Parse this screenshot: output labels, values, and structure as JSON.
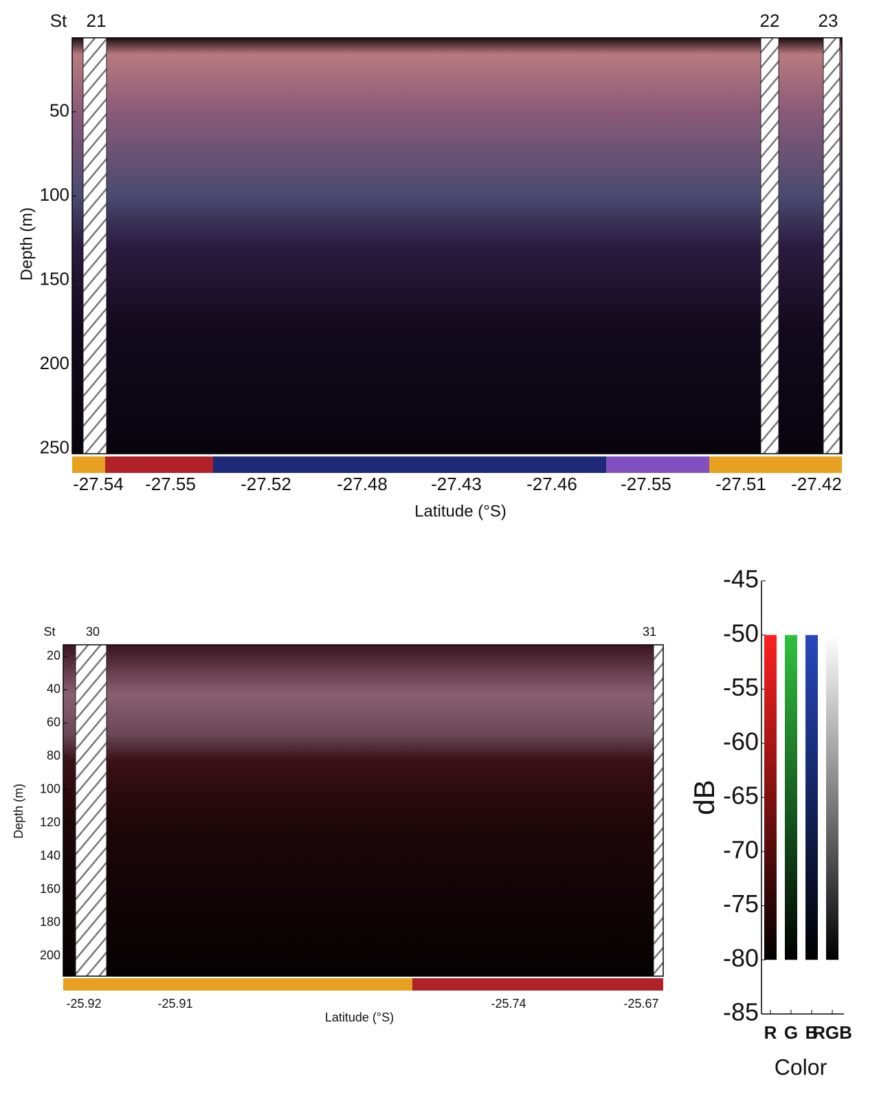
{
  "chart_data": [
    {
      "type": "echogram",
      "stations_label": "St",
      "stations": [
        21,
        22,
        23
      ],
      "categories": [
        "-27.54",
        "-27.55",
        "-27.52",
        "-27.48",
        "-27.43",
        "-27.46",
        "-27.55",
        "-27.51",
        "-27.42"
      ],
      "xlabel": "Latitude (°S)",
      "ylabel": "Depth (m)",
      "ylim": [
        6,
        253
      ],
      "yticks": [
        50,
        100,
        150,
        200,
        250
      ],
      "strip_colors": [
        "#e8a020",
        "#b02228",
        "#1e2a78",
        "#8050c0",
        "#e8a020"
      ]
    },
    {
      "type": "echogram",
      "stations_label": "St",
      "stations": [
        30,
        31
      ],
      "categories": [
        "-25.92",
        "-25.91",
        "-25.74",
        "-25.67"
      ],
      "xlabel": "Latitude (°S)",
      "ylabel": "Depth (m)",
      "ylim": [
        13,
        212
      ],
      "yticks": [
        20,
        40,
        60,
        80,
        100,
        120,
        140,
        160,
        180,
        200
      ],
      "strip_colors": [
        "#e8a020",
        "#b02228"
      ]
    },
    {
      "type": "colorbar",
      "categories": [
        "R",
        "G",
        "B",
        "RGB"
      ],
      "colors": [
        "#ff2020",
        "#30c040",
        "#2848c0",
        "#ffffff"
      ],
      "range": [
        -80,
        -50
      ],
      "ylabel": "dB",
      "xlabel": "Color",
      "ylim": [
        -85,
        -45
      ],
      "yticks": [
        -45,
        -50,
        -55,
        -60,
        -65,
        -70,
        -75,
        -80,
        -85
      ]
    }
  ]
}
